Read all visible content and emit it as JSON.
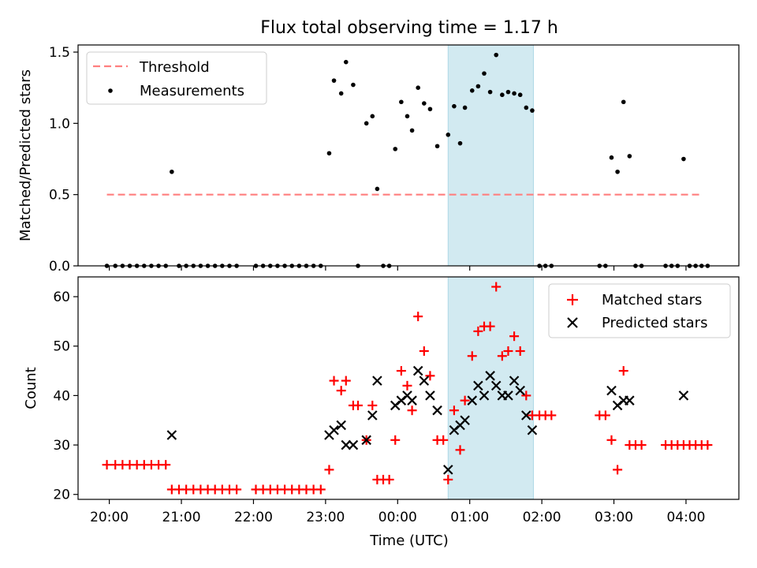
{
  "figure": {
    "title": "Flux total observing time = 1.17 h",
    "highlight_color": "#add8e6",
    "x_tick_labels": [
      "20:00",
      "21:00",
      "22:00",
      "23:00",
      "00:00",
      "01:00",
      "02:00",
      "03:00",
      "04:00"
    ],
    "highlight_window": [
      "00:42",
      "01:53"
    ]
  },
  "chart_data": [
    {
      "type": "scatter",
      "title": "Flux total observing time = 1.17 h",
      "xlabel": "",
      "ylabel": "Matched/Predicted stars",
      "xlim": [
        "19:34",
        "04:44"
      ],
      "ylim": [
        0,
        1.55
      ],
      "y_ticks": [
        0.0,
        0.5,
        1.0,
        1.5
      ],
      "y_tick_labels": [
        "0.0",
        "0.5",
        "1.0",
        "1.5"
      ],
      "legend_position": "top-left",
      "threshold": {
        "name": "Threshold",
        "value": 0.5,
        "x_range": [
          "19:58",
          "04:14"
        ],
        "color": "#ff7f7f",
        "style": "dashed"
      },
      "series": [
        {
          "name": "Measurements",
          "color": "#000000",
          "marker": "dot",
          "points": [
            [
              "19:58",
              0
            ],
            [
              "20:05",
              0
            ],
            [
              "20:11",
              0
            ],
            [
              "20:17",
              0
            ],
            [
              "20:23",
              0
            ],
            [
              "20:29",
              0
            ],
            [
              "20:35",
              0
            ],
            [
              "20:41",
              0
            ],
            [
              "20:47",
              0
            ],
            [
              "20:52",
              0.66
            ],
            [
              "20:58",
              0
            ],
            [
              "21:04",
              0
            ],
            [
              "21:10",
              0
            ],
            [
              "21:16",
              0
            ],
            [
              "21:22",
              0
            ],
            [
              "21:28",
              0
            ],
            [
              "21:34",
              0
            ],
            [
              "21:40",
              0
            ],
            [
              "21:46",
              0
            ],
            [
              "22:02",
              0
            ],
            [
              "22:08",
              0
            ],
            [
              "22:14",
              0
            ],
            [
              "22:20",
              0
            ],
            [
              "22:26",
              0
            ],
            [
              "22:32",
              0
            ],
            [
              "22:38",
              0
            ],
            [
              "22:44",
              0
            ],
            [
              "22:50",
              0
            ],
            [
              "22:56",
              0
            ],
            [
              "23:03",
              0.79
            ],
            [
              "23:07",
              1.3
            ],
            [
              "23:13",
              1.21
            ],
            [
              "23:17",
              1.43
            ],
            [
              "23:23",
              1.27
            ],
            [
              "23:27",
              0
            ],
            [
              "23:34",
              1.0
            ],
            [
              "23:39",
              1.05
            ],
            [
              "23:43",
              0.54
            ],
            [
              "23:48",
              0
            ],
            [
              "23:53",
              0
            ],
            [
              "23:58",
              0.82
            ],
            [
              "00:03",
              1.15
            ],
            [
              "00:08",
              1.05
            ],
            [
              "00:12",
              0.95
            ],
            [
              "00:17",
              1.25
            ],
            [
              "00:22",
              1.14
            ],
            [
              "00:27",
              1.1
            ],
            [
              "00:33",
              0.84
            ],
            [
              "00:42",
              0.92
            ],
            [
              "00:47",
              1.12
            ],
            [
              "00:52",
              0.86
            ],
            [
              "00:56",
              1.11
            ],
            [
              "01:02",
              1.23
            ],
            [
              "01:07",
              1.26
            ],
            [
              "01:12",
              1.35
            ],
            [
              "01:17",
              1.22
            ],
            [
              "01:22",
              1.48
            ],
            [
              "01:27",
              1.2
            ],
            [
              "01:32",
              1.22
            ],
            [
              "01:37",
              1.21
            ],
            [
              "01:42",
              1.2
            ],
            [
              "01:47",
              1.11
            ],
            [
              "01:52",
              1.09
            ],
            [
              "01:58",
              0
            ],
            [
              "02:03",
              0
            ],
            [
              "02:08",
              0
            ],
            [
              "02:48",
              0
            ],
            [
              "02:53",
              0
            ],
            [
              "02:58",
              0.76
            ],
            [
              "03:03",
              0.66
            ],
            [
              "03:08",
              1.15
            ],
            [
              "03:13",
              0.77
            ],
            [
              "03:18",
              0
            ],
            [
              "03:23",
              0
            ],
            [
              "03:43",
              0
            ],
            [
              "03:48",
              0
            ],
            [
              "03:53",
              0
            ],
            [
              "03:58",
              0.75
            ],
            [
              "04:03",
              0
            ],
            [
              "04:08",
              0
            ],
            [
              "04:13",
              0
            ],
            [
              "04:18",
              0
            ]
          ]
        }
      ]
    },
    {
      "type": "scatter",
      "title": "",
      "xlabel": "Time (UTC)",
      "ylabel": "Count",
      "xlim": [
        "19:34",
        "04:44"
      ],
      "ylim": [
        19,
        64
      ],
      "y_ticks": [
        20,
        30,
        40,
        50,
        60
      ],
      "y_tick_labels": [
        "20",
        "30",
        "40",
        "50",
        "60"
      ],
      "legend_position": "top-right",
      "series": [
        {
          "name": "Matched stars",
          "color": "#ff0000",
          "marker": "plus",
          "points": [
            [
              "19:58",
              26
            ],
            [
              "20:05",
              26
            ],
            [
              "20:11",
              26
            ],
            [
              "20:17",
              26
            ],
            [
              "20:23",
              26
            ],
            [
              "20:29",
              26
            ],
            [
              "20:35",
              26
            ],
            [
              "20:41",
              26
            ],
            [
              "20:47",
              26
            ],
            [
              "20:52",
              21
            ],
            [
              "20:58",
              21
            ],
            [
              "21:04",
              21
            ],
            [
              "21:10",
              21
            ],
            [
              "21:16",
              21
            ],
            [
              "21:22",
              21
            ],
            [
              "21:28",
              21
            ],
            [
              "21:34",
              21
            ],
            [
              "21:40",
              21
            ],
            [
              "21:46",
              21
            ],
            [
              "22:02",
              21
            ],
            [
              "22:08",
              21
            ],
            [
              "22:14",
              21
            ],
            [
              "22:20",
              21
            ],
            [
              "22:26",
              21
            ],
            [
              "22:32",
              21
            ],
            [
              "22:38",
              21
            ],
            [
              "22:44",
              21
            ],
            [
              "22:50",
              21
            ],
            [
              "22:56",
              21
            ],
            [
              "23:03",
              25
            ],
            [
              "23:07",
              43
            ],
            [
              "23:13",
              41
            ],
            [
              "23:17",
              43
            ],
            [
              "23:23",
              38
            ],
            [
              "23:27",
              38
            ],
            [
              "23:34",
              31
            ],
            [
              "23:39",
              38
            ],
            [
              "23:43",
              23
            ],
            [
              "23:48",
              23
            ],
            [
              "23:53",
              23
            ],
            [
              "23:58",
              31
            ],
            [
              "00:03",
              45
            ],
            [
              "00:08",
              42
            ],
            [
              "00:12",
              37
            ],
            [
              "00:17",
              56
            ],
            [
              "00:22",
              49
            ],
            [
              "00:27",
              44
            ],
            [
              "00:33",
              31
            ],
            [
              "00:38",
              31
            ],
            [
              "00:42",
              23
            ],
            [
              "00:47",
              37
            ],
            [
              "00:52",
              29
            ],
            [
              "00:56",
              39
            ],
            [
              "01:02",
              48
            ],
            [
              "01:07",
              53
            ],
            [
              "01:12",
              54
            ],
            [
              "01:17",
              54
            ],
            [
              "01:22",
              62
            ],
            [
              "01:27",
              48
            ],
            [
              "01:32",
              49
            ],
            [
              "01:37",
              52
            ],
            [
              "01:42",
              49
            ],
            [
              "01:47",
              40
            ],
            [
              "01:52",
              36
            ],
            [
              "01:58",
              36
            ],
            [
              "02:03",
              36
            ],
            [
              "02:08",
              36
            ],
            [
              "02:48",
              36
            ],
            [
              "02:53",
              36
            ],
            [
              "02:58",
              31
            ],
            [
              "03:03",
              25
            ],
            [
              "03:08",
              45
            ],
            [
              "03:13",
              30
            ],
            [
              "03:18",
              30
            ],
            [
              "03:23",
              30
            ],
            [
              "03:43",
              30
            ],
            [
              "03:48",
              30
            ],
            [
              "03:53",
              30
            ],
            [
              "03:58",
              30
            ],
            [
              "04:03",
              30
            ],
            [
              "04:08",
              30
            ],
            [
              "04:13",
              30
            ],
            [
              "04:18",
              30
            ]
          ]
        },
        {
          "name": "Predicted stars",
          "color": "#000000",
          "marker": "x",
          "points": [
            [
              "20:52",
              32
            ],
            [
              "23:03",
              32
            ],
            [
              "23:07",
              33
            ],
            [
              "23:13",
              34
            ],
            [
              "23:17",
              30
            ],
            [
              "23:23",
              30
            ],
            [
              "23:34",
              31
            ],
            [
              "23:39",
              36
            ],
            [
              "23:43",
              43
            ],
            [
              "23:58",
              38
            ],
            [
              "00:03",
              39
            ],
            [
              "00:08",
              40
            ],
            [
              "00:12",
              39
            ],
            [
              "00:17",
              45
            ],
            [
              "00:22",
              43
            ],
            [
              "00:27",
              40
            ],
            [
              "00:33",
              37
            ],
            [
              "00:42",
              25
            ],
            [
              "00:47",
              33
            ],
            [
              "00:52",
              34
            ],
            [
              "00:56",
              35
            ],
            [
              "01:02",
              39
            ],
            [
              "01:07",
              42
            ],
            [
              "01:12",
              40
            ],
            [
              "01:17",
              44
            ],
            [
              "01:22",
              42
            ],
            [
              "01:27",
              40
            ],
            [
              "01:32",
              40
            ],
            [
              "01:37",
              43
            ],
            [
              "01:42",
              41
            ],
            [
              "01:47",
              36
            ],
            [
              "01:52",
              33
            ],
            [
              "02:58",
              41
            ],
            [
              "03:03",
              38
            ],
            [
              "03:08",
              39
            ],
            [
              "03:13",
              39
            ],
            [
              "03:58",
              40
            ]
          ]
        }
      ]
    }
  ]
}
